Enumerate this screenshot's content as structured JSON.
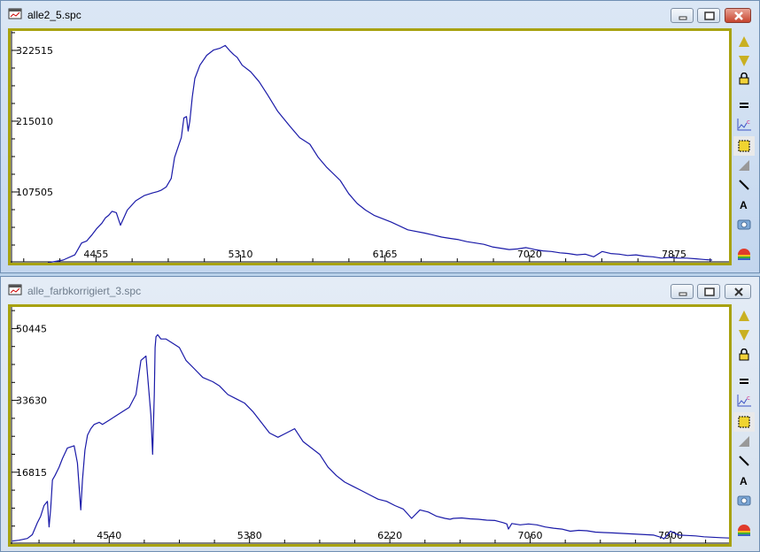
{
  "windows": [
    {
      "title": "alle2_5.spc",
      "state": "active",
      "chart_data": {
        "type": "line",
        "color": "#1a1aa8",
        "xlim": [
          3950,
          8200
        ],
        "ylim": [
          0,
          352000
        ],
        "xticks": [
          4455,
          5310,
          6165,
          7020,
          7875
        ],
        "xtick_labels": [
          "4455",
          "5310",
          "6165",
          "7020",
          "7875"
        ],
        "yticks": [
          107505,
          215010,
          322515
        ],
        "ytick_labels": [
          "107505",
          "215010",
          "322515"
        ],
        "series": [
          {
            "x": [
              4170,
              4260,
              4330,
              4370,
              4400,
              4430,
              4460,
              4490,
              4510,
              4530,
              4550,
              4575,
              4600,
              4640,
              4690,
              4740,
              4790,
              4820,
              4840,
              4870,
              4900,
              4920,
              4940,
              4960,
              4975,
              4990,
              5000,
              5010,
              5025,
              5040,
              5070,
              5110,
              5150,
              5190,
              5220,
              5250,
              5270,
              5290,
              5320,
              5370,
              5420,
              5470,
              5530,
              5600,
              5660,
              5720,
              5770,
              5820,
              5900,
              5950,
              6000,
              6050,
              6100,
              6200,
              6300,
              6400,
              6450,
              6500,
              6550,
              6600,
              6650,
              6700,
              6750,
              6800,
              6850,
              6900,
              6950,
              7000,
              7050,
              7100,
              7150,
              7200,
              7250,
              7300,
              7350,
              7400,
              7450,
              7500,
              7550,
              7600,
              7650,
              7700,
              7750,
              7800,
              7850,
              7900,
              7950,
              8000,
              8050,
              8100
            ],
            "y": [
              0,
              4000,
              12000,
              30000,
              33000,
              42000,
              52000,
              60000,
              68000,
              72000,
              78000,
              76000,
              57000,
              80000,
              94000,
              102000,
              106000,
              108000,
              110000,
              115000,
              128000,
              160000,
              175000,
              190000,
              220000,
              222000,
              200000,
              215000,
              252000,
              280000,
              300000,
              315000,
              323000,
              326000,
              330000,
              321000,
              316000,
              312000,
              300000,
              290000,
              275000,
              255000,
              230000,
              208000,
              190000,
              180000,
              160000,
              145000,
              125000,
              105000,
              90000,
              80000,
              72000,
              62000,
              50000,
              45000,
              42000,
              39000,
              37000,
              35000,
              32000,
              30000,
              28000,
              24000,
              22000,
              20000,
              21000,
              23000,
              20000,
              18000,
              17000,
              15000,
              14000,
              12000,
              13000,
              9000,
              17000,
              14000,
              13000,
              11000,
              12000,
              10000,
              9000,
              7000,
              8000,
              7000,
              7000,
              6000,
              5000,
              4000
            ]
          }
        ]
      }
    },
    {
      "title": "alle_farbkorrigiert_3.spc",
      "state": "inactive",
      "chart_data": {
        "type": "line",
        "color": "#1a1aa8",
        "xlim": [
          3950,
          8250
        ],
        "ylim": [
          0,
          55500
        ],
        "xticks": [
          4540,
          5380,
          6220,
          7060,
          7900
        ],
        "xtick_labels": [
          "4540",
          "5380",
          "6220",
          "7060",
          "7900"
        ],
        "yticks": [
          16815,
          33630,
          50445
        ],
        "ytick_labels": [
          "16815",
          "33630",
          "50445"
        ],
        "series": [
          {
            "x": [
              3960,
              4000,
              4050,
              4080,
              4110,
              4130,
              4150,
              4170,
              4180,
              4190,
              4200,
              4215,
              4240,
              4260,
              4290,
              4330,
              4350,
              4370,
              4380,
              4395,
              4410,
              4430,
              4450,
              4480,
              4500,
              4540,
              4580,
              4620,
              4660,
              4700,
              4730,
              4760,
              4790,
              4800,
              4810,
              4815,
              4820,
              4830,
              4850,
              4880,
              4920,
              4960,
              5000,
              5050,
              5100,
              5160,
              5200,
              5250,
              5300,
              5350,
              5400,
              5450,
              5500,
              5550,
              5600,
              5650,
              5700,
              5750,
              5800,
              5850,
              5900,
              5950,
              6000,
              6050,
              6100,
              6150,
              6200,
              6250,
              6300,
              6350,
              6400,
              6450,
              6500,
              6550,
              6580,
              6590,
              6600,
              6650,
              6700,
              6750,
              6800,
              6850,
              6900,
              6920,
              6930,
              6950,
              7000,
              7050,
              7100,
              7150,
              7200,
              7250,
              7300,
              7350,
              7400,
              7450,
              7500,
              7550,
              7600,
              7650,
              7700,
              7750,
              7800,
              7850,
              7860,
              7900,
              7950,
              8000,
              8050,
              8100,
              8150,
              8200,
              8250
            ],
            "y": [
              700,
              900,
              1300,
              2200,
              5000,
              6500,
              9000,
              10000,
              4000,
              8500,
              15000,
              16000,
              18000,
              20000,
              22500,
              23000,
              19000,
              8000,
              15000,
              22000,
              25500,
              27000,
              28000,
              28500,
              28000,
              29000,
              30000,
              31000,
              32000,
              35000,
              43000,
              44000,
              30000,
              21000,
              35000,
              46000,
              48500,
              49000,
              48000,
              48000,
              47000,
              46000,
              43000,
              41000,
              39000,
              38000,
              37000,
              35000,
              34000,
              33000,
              31000,
              28500,
              26000,
              25000,
              26000,
              27000,
              24000,
              22500,
              21000,
              18000,
              16000,
              14500,
              13500,
              12500,
              11500,
              10500,
              10000,
              9000,
              8200,
              6000,
              8000,
              7500,
              6500,
              6000,
              5800,
              5900,
              6000,
              6100,
              5900,
              5800,
              5600,
              5500,
              5000,
              4700,
              3500,
              4800,
              4500,
              4700,
              4500,
              4000,
              3700,
              3500,
              3000,
              3200,
              3100,
              2800,
              2700,
              2600,
              2500,
              2400,
              2300,
              2200,
              2100,
              1500,
              1200,
              3000,
              2100,
              2000,
              1900,
              1700,
              1600,
              1500,
              1400
            ]
          }
        ]
      }
    }
  ]
}
